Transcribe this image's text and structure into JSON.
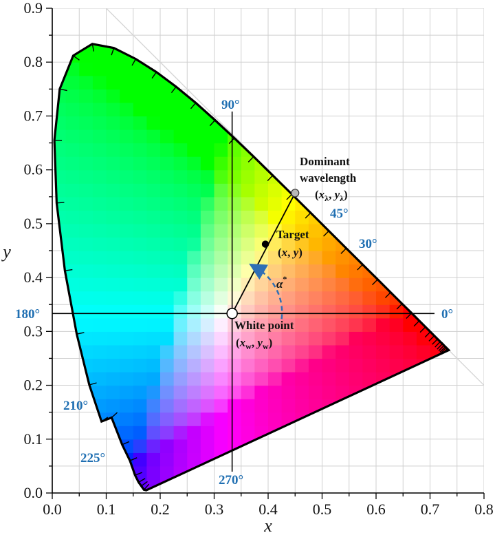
{
  "chart_data": {
    "type": "scatter",
    "title": "",
    "xlabel": "x",
    "ylabel": "y",
    "xlim": [
      0.0,
      0.8
    ],
    "ylim": [
      0.0,
      0.9
    ],
    "grid": true,
    "x_ticks": [
      "0.0",
      "0.1",
      "0.2",
      "0.3",
      "0.4",
      "0.5",
      "0.6",
      "0.7",
      "0.8"
    ],
    "y_ticks": [
      "0.0",
      "0.1",
      "0.2",
      "0.3",
      "0.4",
      "0.5",
      "0.6",
      "0.7",
      "0.8",
      "0.9"
    ],
    "spectral_locus": [
      [
        0.1741,
        0.005
      ],
      [
        0.17,
        0.006
      ],
      [
        0.165,
        0.013
      ],
      [
        0.16,
        0.02
      ],
      [
        0.1535,
        0.033
      ],
      [
        0.144,
        0.06
      ],
      [
        0.1296,
        0.0898
      ],
      [
        0.11,
        0.14
      ],
      [
        0.0913,
        0.1327
      ],
      [
        0.0687,
        0.2007
      ],
      [
        0.0454,
        0.295
      ],
      [
        0.0235,
        0.4127
      ],
      [
        0.0082,
        0.5384
      ],
      [
        0.0039,
        0.6548
      ],
      [
        0.0139,
        0.7502
      ],
      [
        0.0389,
        0.812
      ],
      [
        0.0743,
        0.8338
      ],
      [
        0.1142,
        0.8262
      ],
      [
        0.1547,
        0.8059
      ],
      [
        0.1929,
        0.7816
      ],
      [
        0.2296,
        0.7543
      ],
      [
        0.2658,
        0.7243
      ],
      [
        0.3016,
        0.6923
      ],
      [
        0.3373,
        0.6589
      ],
      [
        0.3731,
        0.6245
      ],
      [
        0.4087,
        0.5896
      ],
      [
        0.4441,
        0.5547
      ],
      [
        0.4788,
        0.5202
      ],
      [
        0.5125,
        0.4866
      ],
      [
        0.5448,
        0.4544
      ],
      [
        0.5752,
        0.4242
      ],
      [
        0.6029,
        0.3965
      ],
      [
        0.627,
        0.3725
      ],
      [
        0.6482,
        0.3514
      ],
      [
        0.6658,
        0.334
      ],
      [
        0.6801,
        0.3197
      ],
      [
        0.6915,
        0.3083
      ],
      [
        0.7006,
        0.2993
      ],
      [
        0.7079,
        0.292
      ],
      [
        0.714,
        0.2859
      ],
      [
        0.719,
        0.2809
      ],
      [
        0.723,
        0.277
      ],
      [
        0.726,
        0.274
      ],
      [
        0.7283,
        0.2717
      ],
      [
        0.73,
        0.27
      ],
      [
        0.732,
        0.268
      ],
      [
        0.7347,
        0.2653
      ]
    ],
    "points": {
      "white_point": {
        "x": 0.3333,
        "y": 0.3333,
        "label": "White point",
        "coords": "(x_w, y_w)"
      },
      "target": {
        "x": 0.395,
        "y": 0.462,
        "label": "Target",
        "coords": "(x, y)"
      },
      "dominant": {
        "x": 0.45,
        "y": 0.557,
        "label_line1": "Dominant",
        "label_line2": "wavelength",
        "coords": "(x_λ, y_λ)"
      }
    },
    "angle_symbol": "α*",
    "angle_labels": [
      "0°",
      "30°",
      "45°",
      "90°",
      "180°",
      "210°",
      "225°",
      "270°"
    ]
  },
  "colors": {
    "locus_line": "#000000",
    "grid": "#cfcfcf",
    "angle_label": "#1f6fb2",
    "arc": "#2f6fb5",
    "dominant_point": "#b8b8b8"
  }
}
